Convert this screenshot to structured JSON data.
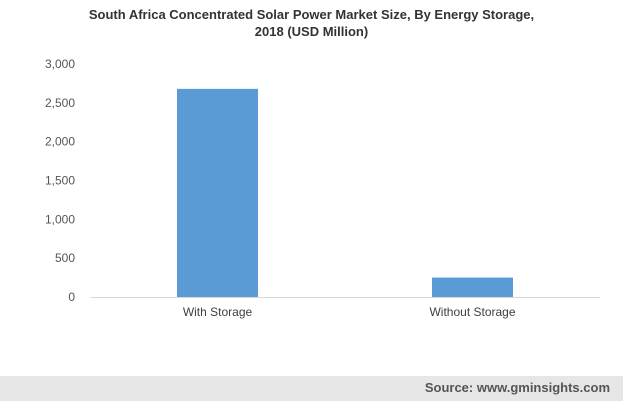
{
  "chart_data": {
    "type": "bar",
    "title_line1": "South Africa Concentrated Solar Power Market Size, By Energy Storage,",
    "title_line2": "2018 (USD Million)",
    "categories": [
      "With Storage",
      "Without Storage"
    ],
    "values": [
      2680,
      250
    ],
    "ylim": [
      0,
      3000
    ],
    "yticks": [
      0,
      500,
      1000,
      1500,
      2000,
      2500,
      3000
    ],
    "ytick_labels": [
      "0",
      "500",
      "1,000",
      "1,500",
      "2,000",
      "2,500",
      "3,000"
    ],
    "xlabel": "",
    "ylabel": "",
    "grid": false,
    "legend": "none",
    "bar_color": "#5b9bd5"
  },
  "footer": {
    "source": "Source: www.gminsights.com"
  }
}
